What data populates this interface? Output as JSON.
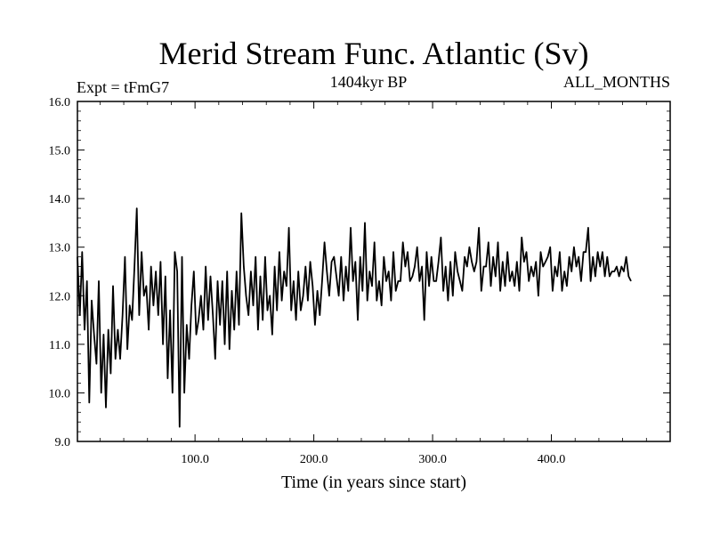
{
  "chart_data": {
    "type": "line",
    "title": "Merid Stream Func. Atlantic (Sv)",
    "subtitle_left": "Expt = tFmG7",
    "subtitle_center": "1404kyr BP",
    "subtitle_right": "ALL_MONTHS",
    "xlabel": "Time (in years since start)",
    "ylabel": "",
    "xlim": [
      1,
      500
    ],
    "ylim": [
      9.0,
      16.0
    ],
    "x_ticks": [
      100,
      200,
      300,
      400
    ],
    "x_tick_labels": [
      "100.0",
      "200.0",
      "300.0",
      "400.0"
    ],
    "y_ticks": [
      9,
      10,
      11,
      12,
      13,
      14,
      15,
      16
    ],
    "y_tick_labels": [
      "9.0",
      "10.0",
      "11.0",
      "12.0",
      "13.0",
      "14.0",
      "15.0",
      "16.0"
    ],
    "grid": false,
    "series": [
      {
        "name": "Merid Stream Func. Atlantic",
        "x_start": 1,
        "x_step": 2,
        "values": [
          12.8,
          11.6,
          12.9,
          11.3,
          12.3,
          9.8,
          11.9,
          11.2,
          10.6,
          12.3,
          10.0,
          11.2,
          9.7,
          11.3,
          10.4,
          12.2,
          10.7,
          11.3,
          10.7,
          11.6,
          12.8,
          10.9,
          11.8,
          11.5,
          12.6,
          13.8,
          11.6,
          12.9,
          12.0,
          12.2,
          11.3,
          12.6,
          11.8,
          12.5,
          11.6,
          12.7,
          11.0,
          12.4,
          10.3,
          11.7,
          10.0,
          12.9,
          12.5,
          9.3,
          12.8,
          10.0,
          11.4,
          10.7,
          11.8,
          12.5,
          11.2,
          11.5,
          12.0,
          11.3,
          12.6,
          11.5,
          12.4,
          11.6,
          10.7,
          12.3,
          11.4,
          12.3,
          11.0,
          12.5,
          10.9,
          12.1,
          11.3,
          12.5,
          11.4,
          13.7,
          12.6,
          12.0,
          11.6,
          12.5,
          11.8,
          12.8,
          11.3,
          12.4,
          11.5,
          12.8,
          11.7,
          12.0,
          11.2,
          12.6,
          11.7,
          12.9,
          11.9,
          12.5,
          12.2,
          13.4,
          11.7,
          12.3,
          11.5,
          12.5,
          11.7,
          12.0,
          12.6,
          11.9,
          12.7,
          12.2,
          11.4,
          12.1,
          11.6,
          12.3,
          13.1,
          12.5,
          12.0,
          12.7,
          12.8,
          12.4,
          12.0,
          12.8,
          11.9,
          12.6,
          12.1,
          13.4,
          12.3,
          12.7,
          11.5,
          12.8,
          12.1,
          13.5,
          11.9,
          12.5,
          12.2,
          13.1,
          11.9,
          12.3,
          11.8,
          12.8,
          12.3,
          12.5,
          11.9,
          12.9,
          12.1,
          12.3,
          12.3,
          13.1,
          12.6,
          12.9,
          12.3,
          12.4,
          12.6,
          13.0,
          12.3,
          12.6,
          11.5,
          12.9,
          12.2,
          12.8,
          12.3,
          12.3,
          12.7,
          13.2,
          12.1,
          12.6,
          11.9,
          12.7,
          12.0,
          12.9,
          12.5,
          12.3,
          12.1,
          12.8,
          12.6,
          13.0,
          12.7,
          12.5,
          12.7,
          13.4,
          12.1,
          12.6,
          12.6,
          13.1,
          12.2,
          12.8,
          12.4,
          13.1,
          12.1,
          12.7,
          12.2,
          12.9,
          12.3,
          12.5,
          12.2,
          12.7,
          12.1,
          13.2,
          12.7,
          12.9,
          12.3,
          12.6,
          12.4,
          12.7,
          12.0,
          12.9,
          12.6,
          12.7,
          12.8,
          13.0,
          12.1,
          12.6,
          12.4,
          12.9,
          12.1,
          12.5,
          12.2,
          12.8,
          12.5,
          13.0,
          12.6,
          12.8,
          12.3,
          12.9,
          12.9,
          13.4,
          12.3,
          12.8,
          12.4,
          12.9,
          12.6,
          12.9,
          12.4,
          12.8,
          12.4,
          12.5,
          12.5,
          12.6,
          12.4,
          12.6,
          12.5,
          12.8,
          12.4,
          12.3
        ]
      }
    ]
  }
}
